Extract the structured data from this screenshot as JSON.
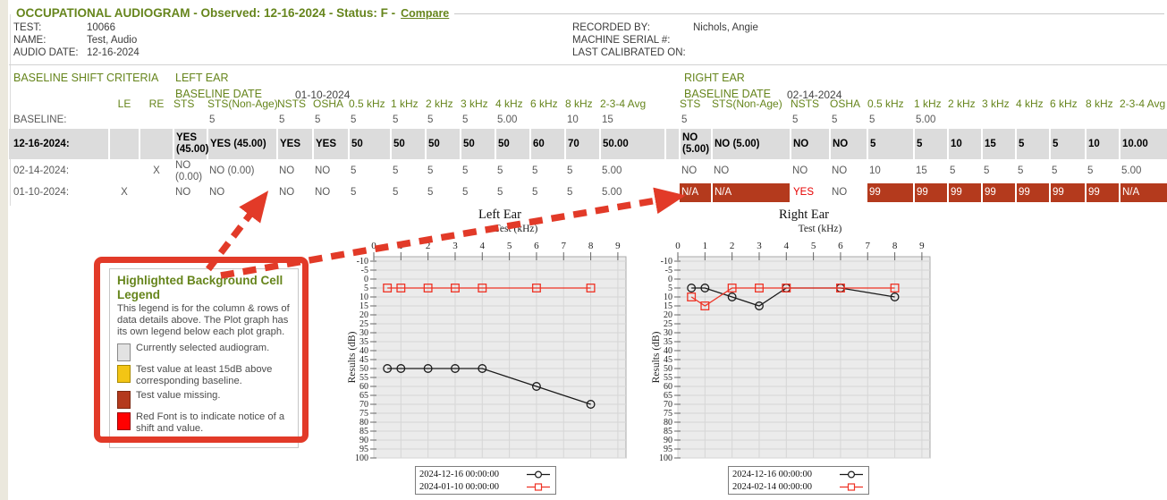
{
  "header": {
    "title": "OCCUPATIONAL AUDIOGRAM - Observed: 12-16-2024 - Status: F -",
    "compare_label": "Compare",
    "fields_left": [
      {
        "label": "TEST:",
        "value": "10066"
      },
      {
        "label": "NAME:",
        "value": "Test, Audio"
      },
      {
        "label": "AUDIO DATE:",
        "value": "12-16-2024"
      }
    ],
    "fields_right": [
      {
        "label": "RECORDED BY:",
        "value": "Nichols, Angie"
      },
      {
        "label": "MACHINE SERIAL #:",
        "value": ""
      },
      {
        "label": "LAST CALIBRATED ON:",
        "value": ""
      }
    ]
  },
  "criteria": {
    "section_title": "BASELINE SHIFT CRITERIA",
    "le_label": "LE",
    "re_label": "RE",
    "left": {
      "ear_title": "LEFT EAR",
      "baseline_date_label": "BASELINE DATE",
      "baseline_date": "01-10-2024"
    },
    "right": {
      "ear_title": "RIGHT EAR",
      "baseline_date_label": "BASELINE DATE",
      "baseline_date": "02-14-2024"
    },
    "ear_columns": [
      "STS",
      "STS(Non-Age)",
      "NSTS",
      "OSHA",
      "0.5 kHz",
      "1 kHz",
      "2 kHz",
      "3 kHz",
      "4 kHz",
      "6 kHz",
      "8 kHz",
      "2-3-4 Avg"
    ],
    "rows": [
      {
        "label": "BASELINE:",
        "le": "",
        "re": "",
        "selected": false,
        "left": [
          "",
          "5",
          "5",
          "5",
          "5",
          "5",
          "5",
          "5",
          "5.00",
          "",
          "10",
          "15"
        ],
        "right": [
          "5",
          "",
          "5",
          "5",
          "5",
          "5.00",
          "",
          "",
          "",
          "",
          "",
          ""
        ]
      },
      {
        "label": "12-16-2024:",
        "le": "",
        "re": "",
        "selected": true,
        "left": [
          {
            "t": "YES (45.00)",
            "s": "r"
          },
          {
            "t": "YES (45.00)",
            "s": "r"
          },
          {
            "t": "YES",
            "s": "r"
          },
          {
            "t": "YES",
            "s": "r"
          },
          {
            "t": "50",
            "s": "y"
          },
          {
            "t": "50",
            "s": "y"
          },
          {
            "t": "50",
            "s": "y"
          },
          {
            "t": "50",
            "s": "y"
          },
          {
            "t": "50",
            "s": "y"
          },
          {
            "t": "60",
            "s": "y"
          },
          {
            "t": "70",
            "s": "y"
          },
          "50.00"
        ],
        "right": [
          "NO (5.00)",
          "NO (5.00)",
          "NO",
          "NO",
          "5",
          "5",
          "10",
          "15",
          "5",
          "5",
          "10",
          "10.00"
        ]
      },
      {
        "label": "02-14-2024:",
        "le": "",
        "re": "X",
        "selected": false,
        "left": [
          "NO (0.00)",
          "NO (0.00)",
          "NO",
          "NO",
          "5",
          "5",
          "5",
          "5",
          "5",
          "5",
          "5",
          "5.00"
        ],
        "right": [
          "NO",
          "NO",
          "NO",
          "NO",
          "10",
          "15",
          "5",
          "5",
          "5",
          "5",
          "5",
          "5.00"
        ]
      },
      {
        "label": "01-10-2024:",
        "le": "X",
        "re": "",
        "selected": false,
        "left": [
          "NO",
          "NO",
          "NO",
          "NO",
          "5",
          "5",
          "5",
          "5",
          "5",
          "5",
          "5",
          "5.00"
        ],
        "right": [
          {
            "t": "N/A",
            "s": "k"
          },
          {
            "t": "N/A",
            "s": "k"
          },
          {
            "t": "YES",
            "s": "r"
          },
          "NO",
          {
            "t": "99",
            "s": "k"
          },
          {
            "t": "99",
            "s": "k"
          },
          {
            "t": "99",
            "s": "k"
          },
          {
            "t": "99",
            "s": "k"
          },
          {
            "t": "99",
            "s": "k"
          },
          {
            "t": "99",
            "s": "k"
          },
          {
            "t": "99",
            "s": "k"
          },
          {
            "t": "N/A",
            "s": "k"
          }
        ]
      }
    ]
  },
  "cell_legend": {
    "title": "Highlighted Background Cell Legend",
    "description": "This legend is for the column & rows of data details above. The Plot graph has its own legend below each plot graph.",
    "items": [
      {
        "swatch": "#e2e2e2",
        "border": "#8a8a8a",
        "text": "Currently selected audiogram."
      },
      {
        "swatch": "#F3C515",
        "border": "#a98a00",
        "text": "Test value at least 15dB above corresponding baseline."
      },
      {
        "swatch": "#B43A1D",
        "border": "#7c2811",
        "text": "Test value missing."
      },
      {
        "swatch": "#FF0000",
        "border": "#990000",
        "text": "Red Font is to indicate notice of a shift and value."
      }
    ]
  },
  "colors": {
    "accent_green": "#66851C",
    "alert_red_text": "#E60000",
    "highlight_yellow": "#F3C515",
    "missing_brick": "#B43A1D",
    "selected_gray": "#dcdcdc",
    "annotation_red": "#E23A28"
  },
  "chart_data": [
    {
      "type": "line",
      "title": "Left Ear",
      "xlabel": "Test (kHz)",
      "ylabel": "Results (dB)",
      "xlim": [
        0,
        9.3
      ],
      "xticks": [
        0,
        1,
        2,
        3,
        4,
        5,
        6,
        7,
        8,
        9
      ],
      "ylim": [
        -10,
        100
      ],
      "ytick_step": 5,
      "y_inverted": true,
      "grid": true,
      "legend_position": "bottom",
      "series": [
        {
          "name": "2024-12-16 00:00:00",
          "color": "#1a1a1a",
          "marker": "circle",
          "x": [
            0.5,
            1,
            2,
            3,
            4,
            6,
            8
          ],
          "y": [
            50,
            50,
            50,
            50,
            50,
            60,
            70
          ]
        },
        {
          "name": "2024-01-10 00:00:00",
          "color": "#EE3224",
          "marker": "square",
          "x": [
            0.5,
            1,
            2,
            3,
            4,
            6,
            8
          ],
          "y": [
            5,
            5,
            5,
            5,
            5,
            5,
            5
          ]
        }
      ]
    },
    {
      "type": "line",
      "title": "Right Ear",
      "xlabel": "Test (kHz)",
      "ylabel": "Results (dB)",
      "xlim": [
        0,
        9.3
      ],
      "xticks": [
        0,
        1,
        2,
        3,
        4,
        5,
        6,
        7,
        8,
        9
      ],
      "ylim": [
        -10,
        100
      ],
      "ytick_step": 5,
      "y_inverted": true,
      "grid": true,
      "legend_position": "bottom",
      "series": [
        {
          "name": "2024-12-16 00:00:00",
          "color": "#1a1a1a",
          "marker": "circle",
          "x": [
            0.5,
            1,
            2,
            3,
            4,
            6,
            8
          ],
          "y": [
            5,
            5,
            10,
            15,
            5,
            5,
            10
          ]
        },
        {
          "name": "2024-02-14 00:00:00",
          "color": "#EE3224",
          "marker": "square",
          "x": [
            0.5,
            1,
            2,
            3,
            4,
            6,
            8
          ],
          "y": [
            10,
            15,
            5,
            5,
            5,
            5,
            5
          ]
        }
      ]
    }
  ]
}
